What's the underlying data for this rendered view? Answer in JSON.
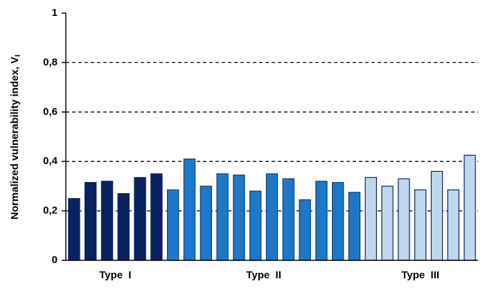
{
  "chart_data": {
    "type": "bar",
    "y_label": "Normalized vulnerability index, V",
    "y_label_subscript": "I",
    "ylim": [
      0,
      1
    ],
    "yticks": [
      0,
      {
        "value": 0.2,
        "label": "0,2"
      },
      {
        "value": 0.4,
        "label": "0,4"
      },
      {
        "value": 0.6,
        "label": "0,6"
      },
      {
        "value": 0.8,
        "label": "0,8"
      },
      1
    ],
    "grid": true,
    "series": [
      {
        "name": "Type  I",
        "color": "#0b2260",
        "edgecolor": "#0b2260",
        "values": [
          0.25,
          0.315,
          0.32,
          0.27,
          0.335,
          0.35
        ]
      },
      {
        "name": "Type  II",
        "color": "#1e78c8",
        "edgecolor": "#0d3d73",
        "values": [
          0.285,
          0.41,
          0.3,
          0.35,
          0.345,
          0.28,
          0.35,
          0.33,
          0.245,
          0.32,
          0.315,
          0.275
        ]
      },
      {
        "name": "Type  III",
        "color": "#bdd7ee",
        "edgecolor": "#0b2260",
        "values": [
          0.335,
          0.3,
          0.33,
          0.285,
          0.36,
          0.285,
          0.425
        ]
      }
    ]
  }
}
